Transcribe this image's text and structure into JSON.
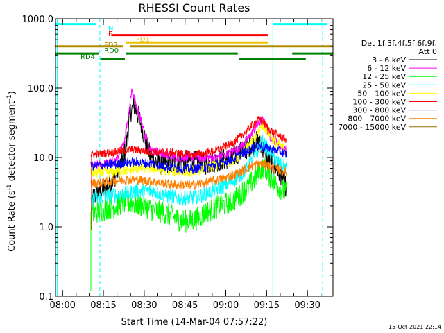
{
  "chart_data": {
    "type": "line",
    "title": "RHESSI Count Rates",
    "xlabel": "Start Time (14-Mar-04 07:57:22)",
    "ylabel_parts": [
      "Count Rate (s",
      "-1",
      " detector segment",
      "-1",
      ")"
    ],
    "x_unit": "minutes after 07:57:22",
    "xlim": [
      0,
      102
    ],
    "ylim": [
      0.1,
      1000
    ],
    "yscale": "log",
    "x_ticks": [
      {
        "label": "08:00",
        "x": 2.6
      },
      {
        "label": "08:15",
        "x": 17.6
      },
      {
        "label": "08:30",
        "x": 32.6
      },
      {
        "label": "08:45",
        "x": 47.6
      },
      {
        "label": "09:00",
        "x": 62.6
      },
      {
        "label": "09:15",
        "x": 77.6
      },
      {
        "label": "09:30",
        "x": 92.6
      }
    ],
    "y_ticks": [
      {
        "label": "0.1",
        "v": 0.1
      },
      {
        "label": "1.0",
        "v": 1
      },
      {
        "label": "10.0",
        "v": 10
      },
      {
        "label": "100.0",
        "v": 100
      },
      {
        "label": "1000.0",
        "v": 1000
      }
    ],
    "legend_header": [
      "Det 1f,3f,4f,5f,6f,9f,",
      "Att 0"
    ],
    "series": [
      {
        "name": "3 - 6 keV",
        "color": "#000000",
        "points": [
          [
            13,
            1.3
          ],
          [
            13.5,
            2.5
          ],
          [
            15,
            3.0
          ],
          [
            20,
            4.0
          ],
          [
            22,
            5.5
          ],
          [
            24,
            8
          ],
          [
            26,
            15
          ],
          [
            27.5,
            45
          ],
          [
            29,
            55
          ],
          [
            31,
            35
          ],
          [
            33,
            18
          ],
          [
            35,
            10
          ],
          [
            38,
            8
          ],
          [
            42,
            8
          ],
          [
            46,
            9
          ],
          [
            50,
            9
          ],
          [
            55,
            8
          ],
          [
            60,
            9
          ],
          [
            65,
            10
          ],
          [
            68,
            12
          ],
          [
            71,
            14
          ],
          [
            74,
            17
          ],
          [
            76,
            14
          ],
          [
            78,
            9
          ],
          [
            81,
            7
          ],
          [
            84,
            5
          ],
          [
            85,
            3
          ]
        ]
      },
      {
        "name": "6 - 12 keV",
        "color": "#ff00ff",
        "points": [
          [
            13,
            7.5
          ],
          [
            18,
            8
          ],
          [
            22,
            9
          ],
          [
            25,
            15
          ],
          [
            26.5,
            35
          ],
          [
            28,
            95
          ],
          [
            29,
            70
          ],
          [
            31,
            40
          ],
          [
            33,
            20
          ],
          [
            35,
            13
          ],
          [
            40,
            11
          ],
          [
            45,
            10
          ],
          [
            50,
            10
          ],
          [
            55,
            10
          ],
          [
            60,
            10
          ],
          [
            65,
            12
          ],
          [
            68,
            14
          ],
          [
            71,
            19
          ],
          [
            73,
            25
          ],
          [
            75,
            32
          ],
          [
            76,
            35
          ],
          [
            77,
            30
          ],
          [
            79,
            20
          ],
          [
            82,
            16
          ],
          [
            85,
            12
          ]
        ]
      },
      {
        "name": "12 - 25 keV",
        "color": "#00ff00",
        "points": [
          [
            13,
            1.5
          ],
          [
            18,
            1.8
          ],
          [
            22,
            2.0
          ],
          [
            26,
            2.3
          ],
          [
            30,
            2.1
          ],
          [
            35,
            1.8
          ],
          [
            40,
            1.6
          ],
          [
            45,
            1.3
          ],
          [
            48,
            1.2
          ],
          [
            52,
            1.3
          ],
          [
            55,
            1.6
          ],
          [
            60,
            2.0
          ],
          [
            65,
            2.3
          ],
          [
            70,
            3.5
          ],
          [
            73,
            4.8
          ],
          [
            75,
            6.5
          ],
          [
            77,
            7.5
          ],
          [
            78,
            6
          ],
          [
            80,
            4.5
          ],
          [
            83,
            3.5
          ],
          [
            85,
            3.0
          ]
        ]
      },
      {
        "name": "25 - 50 keV",
        "color": "#00ffff",
        "points": [
          [
            13,
            2.5
          ],
          [
            20,
            2.8
          ],
          [
            25,
            3.0
          ],
          [
            30,
            3.3
          ],
          [
            35,
            3.3
          ],
          [
            40,
            2.9
          ],
          [
            45,
            2.6
          ],
          [
            50,
            2.6
          ],
          [
            55,
            3.0
          ],
          [
            60,
            3.6
          ],
          [
            65,
            4.5
          ],
          [
            70,
            6.5
          ],
          [
            73,
            10
          ],
          [
            75,
            14
          ],
          [
            76,
            17
          ],
          [
            78,
            13
          ],
          [
            81,
            9
          ],
          [
            85,
            7
          ]
        ]
      },
      {
        "name": "50 - 100 keV",
        "color": "#ffff00",
        "points": [
          [
            13,
            6
          ],
          [
            20,
            6.2
          ],
          [
            25,
            6.5
          ],
          [
            30,
            7
          ],
          [
            35,
            7
          ],
          [
            40,
            6.6
          ],
          [
            45,
            6.3
          ],
          [
            50,
            6.3
          ],
          [
            55,
            7
          ],
          [
            60,
            7.8
          ],
          [
            65,
            9
          ],
          [
            70,
            13
          ],
          [
            73,
            18
          ],
          [
            75,
            25
          ],
          [
            76,
            30
          ],
          [
            78,
            24
          ],
          [
            81,
            16
          ],
          [
            85,
            13
          ]
        ]
      },
      {
        "name": "100 - 300 keV",
        "color": "#ff0000",
        "points": [
          [
            13,
            11
          ],
          [
            18,
            11.5
          ],
          [
            22,
            12
          ],
          [
            25,
            12.5
          ],
          [
            28,
            13
          ],
          [
            32,
            12.5
          ],
          [
            36,
            12
          ],
          [
            40,
            12
          ],
          [
            45,
            11.5
          ],
          [
            50,
            11
          ],
          [
            55,
            11.5
          ],
          [
            60,
            13
          ],
          [
            65,
            16
          ],
          [
            68,
            20
          ],
          [
            71,
            26
          ],
          [
            73,
            31
          ],
          [
            75,
            36
          ],
          [
            76,
            34
          ],
          [
            78,
            27
          ],
          [
            80,
            23
          ],
          [
            83,
            20
          ],
          [
            85,
            18
          ]
        ]
      },
      {
        "name": "300 - 800 keV",
        "color": "#0000ff",
        "points": [
          [
            13,
            7.5
          ],
          [
            18,
            7.8
          ],
          [
            22,
            8
          ],
          [
            26,
            8.5
          ],
          [
            30,
            8.5
          ],
          [
            35,
            8.2
          ],
          [
            40,
            7.5
          ],
          [
            45,
            7
          ],
          [
            50,
            6.8
          ],
          [
            55,
            7.2
          ],
          [
            60,
            8
          ],
          [
            65,
            9.5
          ],
          [
            70,
            12
          ],
          [
            73,
            14
          ],
          [
            75,
            15
          ],
          [
            77,
            14
          ],
          [
            80,
            13
          ],
          [
            83,
            12
          ],
          [
            85,
            11
          ]
        ]
      },
      {
        "name": "800 - 7000 keV",
        "color": "#ff8000",
        "points": [
          [
            13,
            4.2
          ],
          [
            18,
            4.4
          ],
          [
            22,
            4.6
          ],
          [
            26,
            4.8
          ],
          [
            30,
            4.8
          ],
          [
            35,
            4.5
          ],
          [
            40,
            4.2
          ],
          [
            45,
            4.0
          ],
          [
            50,
            4.0
          ],
          [
            55,
            4.3
          ],
          [
            60,
            4.8
          ],
          [
            65,
            5.5
          ],
          [
            70,
            6.8
          ],
          [
            73,
            7.8
          ],
          [
            75,
            8.3
          ],
          [
            77,
            8
          ],
          [
            80,
            7
          ],
          [
            83,
            6.5
          ],
          [
            85,
            6
          ]
        ]
      },
      {
        "name": "7000 - 15000 keV",
        "color": "#8b7500",
        "points": []
      }
    ],
    "time_bars": [
      {
        "label": "N",
        "color": "#00ffff",
        "y": 840,
        "segments": [
          [
            0,
            15
          ],
          [
            80,
            100
          ]
        ]
      },
      {
        "label": "F",
        "color": "#ff0000",
        "y": 580,
        "segments": [
          [
            20.5,
            78
          ]
        ]
      },
      {
        "label": "FD1",
        "color": "#e8c000",
        "y": 455,
        "segments": [
          [
            26,
            78
          ]
        ]
      },
      {
        "label": "FD2",
        "color": "#b08c00",
        "y": 400,
        "segments": [
          [
            0,
            25
          ],
          [
            27.5,
            102
          ]
        ]
      },
      {
        "label": "RD0",
        "color": "#008000",
        "y": 315,
        "segments": [
          [
            0,
            16
          ],
          [
            26,
            67
          ],
          [
            87,
            102
          ]
        ]
      },
      {
        "label": "RD4",
        "color": "#008000",
        "y": 262,
        "segments": [
          [
            16.5,
            25.5
          ],
          [
            67.5,
            92
          ]
        ]
      }
    ],
    "vlines": [
      {
        "x": 0.6,
        "color": "#00ffff",
        "dashed": false
      },
      {
        "x": 16.3,
        "color": "#00ffff",
        "dashed": true
      },
      {
        "x": 79.9,
        "color": "#00ffff",
        "dashed": false
      },
      {
        "x": 98.2,
        "color": "#00ffff",
        "dashed": true
      }
    ],
    "data_start_x": 13,
    "timestamp": "15-Oct-2021 22:14"
  }
}
